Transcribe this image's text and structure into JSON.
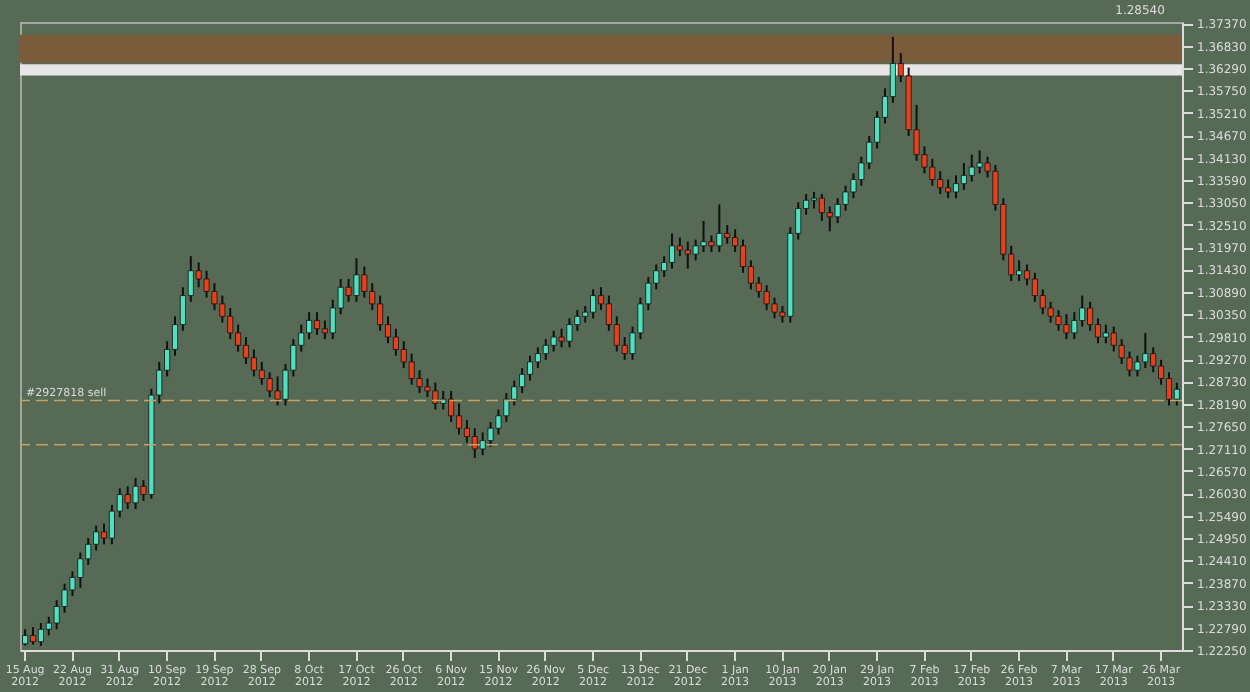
{
  "chart_data": {
    "type": "candlestick",
    "categories": [
      "15 Aug 2012",
      null,
      null,
      null,
      null,
      null,
      "22 Aug 2012",
      null,
      null,
      null,
      null,
      null,
      "31 Aug 2012",
      null,
      null,
      null,
      null,
      null,
      "10 Sep 2012",
      null,
      null,
      null,
      null,
      null,
      "19 Sep 2012",
      null,
      null,
      null,
      null,
      null,
      "28 Sep 2012",
      null,
      null,
      null,
      null,
      null,
      "8 Oct 2012",
      null,
      null,
      null,
      null,
      null,
      "17 Oct 2012",
      null,
      null,
      null,
      null,
      null,
      "26 Oct 2012",
      null,
      null,
      null,
      null,
      null,
      "6 Nov 2012",
      null,
      null,
      null,
      null,
      null,
      "15 Nov 2012",
      null,
      null,
      null,
      null,
      null,
      "26 Nov 2012",
      null,
      null,
      null,
      null,
      null,
      "5 Dec 2012",
      null,
      null,
      null,
      null,
      null,
      "13 Dec 2012",
      null,
      null,
      null,
      null,
      null,
      "21 Dec 2012",
      null,
      null,
      null,
      null,
      null,
      "1 Jan 2013",
      null,
      null,
      null,
      null,
      null,
      "10 Jan 2013",
      null,
      null,
      null,
      null,
      null,
      "20 Jan 2013",
      null,
      null,
      null,
      null,
      null,
      "29 Jan 2013",
      null,
      null,
      null,
      null,
      null,
      "7 Feb 2013",
      null,
      null,
      null,
      null,
      null,
      "17 Feb 2013",
      null,
      null,
      null,
      null,
      null,
      "26 Feb 2013",
      null,
      null,
      null,
      null,
      null,
      "7 Mar 2013",
      null,
      null,
      null,
      null,
      null,
      "17 Mar 2013",
      null,
      null,
      null,
      null,
      null,
      "26 Mar 2013",
      null,
      null
    ],
    "ohlc": [
      [
        1.224,
        1.2275,
        1.2236,
        1.226
      ],
      [
        1.226,
        1.228,
        1.2238,
        1.2245
      ],
      [
        1.2245,
        1.229,
        1.2235,
        1.2275
      ],
      [
        1.2275,
        1.2305,
        1.226,
        1.229
      ],
      [
        1.229,
        1.2345,
        1.2275,
        1.233
      ],
      [
        1.233,
        1.2385,
        1.2315,
        1.237
      ],
      [
        1.237,
        1.2415,
        1.2355,
        1.24
      ],
      [
        1.24,
        1.246,
        1.2375,
        1.2445
      ],
      [
        1.2445,
        1.2495,
        1.243,
        1.248
      ],
      [
        1.248,
        1.2525,
        1.2465,
        1.251
      ],
      [
        1.251,
        1.253,
        1.248,
        1.2495
      ],
      [
        1.2495,
        1.2575,
        1.248,
        1.256
      ],
      [
        1.256,
        1.2615,
        1.2545,
        1.26
      ],
      [
        1.26,
        1.262,
        1.2565,
        1.258
      ],
      [
        1.258,
        1.264,
        1.2565,
        1.262
      ],
      [
        1.262,
        1.2635,
        1.2585,
        1.26
      ],
      [
        1.26,
        1.2855,
        1.259,
        1.284
      ],
      [
        1.284,
        1.292,
        1.282,
        1.29
      ],
      [
        1.29,
        1.297,
        1.2885,
        1.295
      ],
      [
        1.295,
        1.303,
        1.2935,
        1.301
      ],
      [
        1.301,
        1.31,
        1.2995,
        1.308
      ],
      [
        1.308,
        1.3175,
        1.3065,
        1.314
      ],
      [
        1.314,
        1.316,
        1.31,
        1.312
      ],
      [
        1.312,
        1.314,
        1.3075,
        1.309
      ],
      [
        1.309,
        1.311,
        1.3045,
        1.306
      ],
      [
        1.306,
        1.308,
        1.3015,
        1.303
      ],
      [
        1.303,
        1.305,
        1.2975,
        1.299
      ],
      [
        1.299,
        1.301,
        1.2945,
        1.296
      ],
      [
        1.296,
        1.298,
        1.2915,
        1.293
      ],
      [
        1.293,
        1.295,
        1.2885,
        1.29
      ],
      [
        1.29,
        1.292,
        1.2865,
        1.288
      ],
      [
        1.288,
        1.2895,
        1.2835,
        1.285
      ],
      [
        1.285,
        1.2885,
        1.2815,
        1.283
      ],
      [
        1.283,
        1.2915,
        1.2815,
        1.29
      ],
      [
        1.29,
        1.2975,
        1.2885,
        1.296
      ],
      [
        1.296,
        1.301,
        1.2945,
        1.299
      ],
      [
        1.299,
        1.304,
        1.2975,
        1.302
      ],
      [
        1.302,
        1.304,
        1.2985,
        1.3
      ],
      [
        1.3,
        1.302,
        1.2975,
        1.299
      ],
      [
        1.299,
        1.307,
        1.2975,
        1.305
      ],
      [
        1.305,
        1.312,
        1.3035,
        1.31
      ],
      [
        1.31,
        1.312,
        1.3065,
        1.308
      ],
      [
        1.308,
        1.317,
        1.3065,
        1.313
      ],
      [
        1.313,
        1.315,
        1.3075,
        1.309
      ],
      [
        1.309,
        1.311,
        1.3045,
        1.306
      ],
      [
        1.306,
        1.308,
        1.2995,
        1.301
      ],
      [
        1.301,
        1.303,
        1.2965,
        1.298
      ],
      [
        1.298,
        1.3,
        1.2935,
        1.295
      ],
      [
        1.295,
        1.297,
        1.2905,
        1.292
      ],
      [
        1.292,
        1.294,
        1.2865,
        1.288
      ],
      [
        1.288,
        1.29,
        1.2845,
        1.286
      ],
      [
        1.286,
        1.288,
        1.2835,
        1.285
      ],
      [
        1.285,
        1.287,
        1.2805,
        1.282
      ],
      [
        1.282,
        1.285,
        1.2805,
        1.283
      ],
      [
        1.283,
        1.285,
        1.2775,
        1.279
      ],
      [
        1.279,
        1.282,
        1.2745,
        1.276
      ],
      [
        1.276,
        1.278,
        1.2725,
        1.274
      ],
      [
        1.274,
        1.276,
        1.2688,
        1.271
      ],
      [
        1.271,
        1.275,
        1.2695,
        1.273
      ],
      [
        1.273,
        1.2775,
        1.2715,
        1.276
      ],
      [
        1.276,
        1.2805,
        1.2745,
        1.279
      ],
      [
        1.279,
        1.2845,
        1.2775,
        1.283
      ],
      [
        1.283,
        1.2875,
        1.2815,
        1.286
      ],
      [
        1.286,
        1.2905,
        1.2845,
        1.289
      ],
      [
        1.289,
        1.2935,
        1.2875,
        1.292
      ],
      [
        1.292,
        1.2955,
        1.2905,
        1.294
      ],
      [
        1.294,
        1.2975,
        1.2925,
        1.296
      ],
      [
        1.296,
        1.2995,
        1.2945,
        1.298
      ],
      [
        1.298,
        1.3,
        1.2955,
        1.297
      ],
      [
        1.297,
        1.3025,
        1.2955,
        1.301
      ],
      [
        1.301,
        1.3045,
        1.2995,
        1.303
      ],
      [
        1.303,
        1.3055,
        1.3015,
        1.304
      ],
      [
        1.304,
        1.3095,
        1.3025,
        1.308
      ],
      [
        1.308,
        1.31,
        1.3045,
        1.306
      ],
      [
        1.306,
        1.308,
        1.2995,
        1.301
      ],
      [
        1.301,
        1.303,
        1.2945,
        1.296
      ],
      [
        1.296,
        1.298,
        1.2925,
        1.294
      ],
      [
        1.294,
        1.3005,
        1.2925,
        1.299
      ],
      [
        1.299,
        1.3075,
        1.2975,
        1.306
      ],
      [
        1.306,
        1.3125,
        1.3045,
        1.311
      ],
      [
        1.311,
        1.3155,
        1.3095,
        1.314
      ],
      [
        1.314,
        1.3175,
        1.3125,
        1.316
      ],
      [
        1.316,
        1.323,
        1.3145,
        1.32
      ],
      [
        1.32,
        1.322,
        1.3175,
        1.319
      ],
      [
        1.319,
        1.321,
        1.3145,
        1.318
      ],
      [
        1.318,
        1.3215,
        1.3165,
        1.32
      ],
      [
        1.32,
        1.326,
        1.3185,
        1.321
      ],
      [
        1.321,
        1.3225,
        1.3185,
        1.32
      ],
      [
        1.32,
        1.33,
        1.3185,
        1.323
      ],
      [
        1.323,
        1.325,
        1.3205,
        1.322
      ],
      [
        1.322,
        1.324,
        1.3185,
        1.32
      ],
      [
        1.32,
        1.3215,
        1.3135,
        1.315
      ],
      [
        1.315,
        1.3165,
        1.3095,
        1.311
      ],
      [
        1.311,
        1.3125,
        1.3075,
        1.309
      ],
      [
        1.309,
        1.3105,
        1.3045,
        1.306
      ],
      [
        1.306,
        1.3075,
        1.3025,
        1.304
      ],
      [
        1.304,
        1.3055,
        1.3015,
        1.303
      ],
      [
        1.303,
        1.3245,
        1.3015,
        1.323
      ],
      [
        1.323,
        1.3305,
        1.3215,
        1.329
      ],
      [
        1.329,
        1.3325,
        1.3275,
        1.331
      ],
      [
        1.331,
        1.333,
        1.329,
        1.3315
      ],
      [
        1.3315,
        1.3325,
        1.326,
        1.328
      ],
      [
        1.328,
        1.3295,
        1.3235,
        1.327
      ],
      [
        1.327,
        1.3315,
        1.3255,
        1.33
      ],
      [
        1.33,
        1.3345,
        1.3285,
        1.333
      ],
      [
        1.333,
        1.3375,
        1.3315,
        1.336
      ],
      [
        1.336,
        1.3415,
        1.3345,
        1.34
      ],
      [
        1.34,
        1.3465,
        1.3385,
        1.345
      ],
      [
        1.345,
        1.3525,
        1.3435,
        1.351
      ],
      [
        1.351,
        1.358,
        1.3495,
        1.356
      ],
      [
        1.356,
        1.3704,
        1.3545,
        1.364
      ],
      [
        1.364,
        1.3665,
        1.3595,
        1.361
      ],
      [
        1.361,
        1.363,
        1.3465,
        1.348
      ],
      [
        1.348,
        1.354,
        1.3405,
        1.342
      ],
      [
        1.342,
        1.344,
        1.3375,
        1.339
      ],
      [
        1.339,
        1.341,
        1.3345,
        1.336
      ],
      [
        1.336,
        1.338,
        1.3325,
        1.334
      ],
      [
        1.334,
        1.336,
        1.3315,
        1.333
      ],
      [
        1.333,
        1.337,
        1.3315,
        1.335
      ],
      [
        1.335,
        1.34,
        1.3335,
        1.337
      ],
      [
        1.337,
        1.342,
        1.3355,
        1.339
      ],
      [
        1.339,
        1.343,
        1.3375,
        1.34
      ],
      [
        1.34,
        1.3415,
        1.3365,
        1.338
      ],
      [
        1.338,
        1.3395,
        1.3285,
        1.33
      ],
      [
        1.33,
        1.3315,
        1.3165,
        1.318
      ],
      [
        1.318,
        1.32,
        1.3115,
        1.313
      ],
      [
        1.313,
        1.3165,
        1.3115,
        1.314
      ],
      [
        1.314,
        1.3155,
        1.3105,
        1.312
      ],
      [
        1.312,
        1.3135,
        1.3065,
        1.308
      ],
      [
        1.308,
        1.3095,
        1.3035,
        1.305
      ],
      [
        1.305,
        1.3065,
        1.3015,
        1.303
      ],
      [
        1.303,
        1.3045,
        1.2995,
        1.301
      ],
      [
        1.301,
        1.3035,
        1.2975,
        1.299
      ],
      [
        1.299,
        1.304,
        1.2975,
        1.302
      ],
      [
        1.302,
        1.308,
        1.3005,
        1.305
      ],
      [
        1.305,
        1.3065,
        1.2995,
        1.301
      ],
      [
        1.301,
        1.3025,
        1.2965,
        1.298
      ],
      [
        1.298,
        1.301,
        1.2965,
        1.299
      ],
      [
        1.299,
        1.3005,
        1.2945,
        1.296
      ],
      [
        1.296,
        1.2975,
        1.2915,
        1.293
      ],
      [
        1.293,
        1.2945,
        1.2885,
        1.29
      ],
      [
        1.29,
        1.2935,
        1.2885,
        1.292
      ],
      [
        1.292,
        1.299,
        1.2905,
        1.294
      ],
      [
        1.294,
        1.2955,
        1.2895,
        1.291
      ],
      [
        1.291,
        1.2925,
        1.2865,
        1.288
      ],
      [
        1.288,
        1.2895,
        1.2815,
        1.283
      ],
      [
        1.283,
        1.287,
        1.2815,
        1.2854
      ]
    ],
    "colors": [
      "#4fe0c0",
      "#e8401a",
      "#4fe0c0",
      "#4fe0c0",
      "#4fe0c0",
      "#4fe0c0",
      "#4fe0c0",
      "#4fe0c0",
      "#4fe0c0",
      "#4fe0c0",
      "#e8401a",
      "#4fe0c0",
      "#4fe0c0",
      "#e8401a",
      "#4fe0c0",
      "#e8401a",
      "#4fe0c0",
      "#4fe0c0",
      "#4fe0c0",
      "#4fe0c0",
      "#4fe0c0",
      "#4fe0c0",
      "#e8401a",
      "#e8401a",
      "#e8401a",
      "#e8401a",
      "#e8401a",
      "#e8401a",
      "#e8401a",
      "#e8401a",
      "#e8401a",
      "#e8401a",
      "#e8401a",
      "#4fe0c0",
      "#4fe0c0",
      "#4fe0c0",
      "#4fe0c0",
      "#e8401a",
      "#e8401a",
      "#4fe0c0",
      "#4fe0c0",
      "#e8401a",
      "#4fe0c0",
      "#e8401a",
      "#e8401a",
      "#e8401a",
      "#e8401a",
      "#e8401a",
      "#e8401a",
      "#e8401a",
      "#e8401a",
      "#e8401a",
      "#e8401a",
      "#4fe0c0",
      "#e8401a",
      "#e8401a",
      "#e8401a",
      "#e8401a",
      "#4fe0c0",
      "#4fe0c0",
      "#4fe0c0",
      "#4fe0c0",
      "#4fe0c0",
      "#4fe0c0",
      "#4fe0c0",
      "#4fe0c0",
      "#4fe0c0",
      "#4fe0c0",
      "#e8401a",
      "#4fe0c0",
      "#4fe0c0",
      "#4fe0c0",
      "#4fe0c0",
      "#e8401a",
      "#e8401a",
      "#e8401a",
      "#e8401a",
      "#4fe0c0",
      "#4fe0c0",
      "#4fe0c0",
      "#4fe0c0",
      "#4fe0c0",
      "#4fe0c0",
      "#e8401a",
      "#e8401a",
      "#4fe0c0",
      "#4fe0c0",
      "#e8401a",
      "#4fe0c0",
      "#e8401a",
      "#e8401a",
      "#e8401a",
      "#e8401a",
      "#e8401a",
      "#e8401a",
      "#e8401a",
      "#e8401a",
      "#4fe0c0",
      "#4fe0c0",
      "#4fe0c0",
      "#4fe0c0",
      "#e8401a",
      "#e8401a",
      "#4fe0c0",
      "#4fe0c0",
      "#4fe0c0",
      "#4fe0c0",
      "#4fe0c0",
      "#4fe0c0",
      "#4fe0c0",
      "#4fe0c0",
      "#e8401a",
      "#e8401a",
      "#e8401a",
      "#e8401a",
      "#e8401a",
      "#e8401a",
      "#e8401a",
      "#4fe0c0",
      "#4fe0c0",
      "#4fe0c0",
      "#4fe0c0",
      "#e8401a",
      "#e8401a",
      "#e8401a",
      "#e8401a",
      "#4fe0c0",
      "#e8401a",
      "#e8401a",
      "#e8401a",
      "#e8401a",
      "#e8401a",
      "#e8401a",
      "#4fe0c0",
      "#4fe0c0",
      "#e8401a",
      "#e8401a",
      "#4fe0c0",
      "#e8401a",
      "#e8401a",
      "#e8401a",
      "#4fe0c0",
      "#4fe0c0",
      "#e8401a",
      "#e8401a",
      "#e8401a",
      "#4fe0c0"
    ],
    "ylim": [
      1.2225,
      1.374
    ],
    "yticks": [
      {
        "value": 1.2225,
        "label": "1.22250"
      },
      {
        "value": 1.2279,
        "label": "1.22790"
      },
      {
        "value": 1.2333,
        "label": "1.23330"
      },
      {
        "value": 1.2387,
        "label": "1.23870"
      },
      {
        "value": 1.2441,
        "label": "1.24410"
      },
      {
        "value": 1.2495,
        "label": "1.24950"
      },
      {
        "value": 1.2549,
        "label": "1.25490"
      },
      {
        "value": 1.2603,
        "label": "1.26030"
      },
      {
        "value": 1.2657,
        "label": "1.26570"
      },
      {
        "value": 1.2711,
        "label": "1.27110"
      },
      {
        "value": 1.2765,
        "label": "1.27650"
      },
      {
        "value": 1.2819,
        "label": "1.28190"
      },
      {
        "value": 1.2873,
        "label": "1.28730"
      },
      {
        "value": 1.2927,
        "label": "1.29270"
      },
      {
        "value": 1.2981,
        "label": "1.29810"
      },
      {
        "value": 1.3035,
        "label": "1.30350"
      },
      {
        "value": 1.3089,
        "label": "1.30890"
      },
      {
        "value": 1.3143,
        "label": "1.31430"
      },
      {
        "value": 1.3197,
        "label": "1.31970"
      },
      {
        "value": 1.3251,
        "label": "1.32510"
      },
      {
        "value": 1.3305,
        "label": "1.33050"
      },
      {
        "value": 1.3359,
        "label": "1.33590"
      },
      {
        "value": 1.3413,
        "label": "1.34130"
      },
      {
        "value": 1.3467,
        "label": "1.34670"
      },
      {
        "value": 1.3521,
        "label": "1.35210"
      },
      {
        "value": 1.3575,
        "label": "1.35750"
      },
      {
        "value": 1.3629,
        "label": "1.36290"
      },
      {
        "value": 1.3683,
        "label": "1.36830"
      },
      {
        "value": 1.3737,
        "label": "1.37370"
      }
    ],
    "bands": [
      {
        "axis": "y",
        "from": 1.3642,
        "to": 1.3709,
        "color": "#7a5c3a"
      },
      {
        "axis": "y",
        "from": 1.3611,
        "to": 1.3638,
        "color": "#e6e6e6"
      }
    ],
    "ref_lines": [
      {
        "axis": "y",
        "value": 1.2827,
        "label": "#2927818 sell",
        "color": "#c8a060",
        "line_style": "dashed"
      },
      {
        "axis": "y",
        "value": 1.272,
        "color": "#c8a060",
        "line_style": "dashed"
      }
    ],
    "annotations": [
      "1.28540"
    ]
  }
}
